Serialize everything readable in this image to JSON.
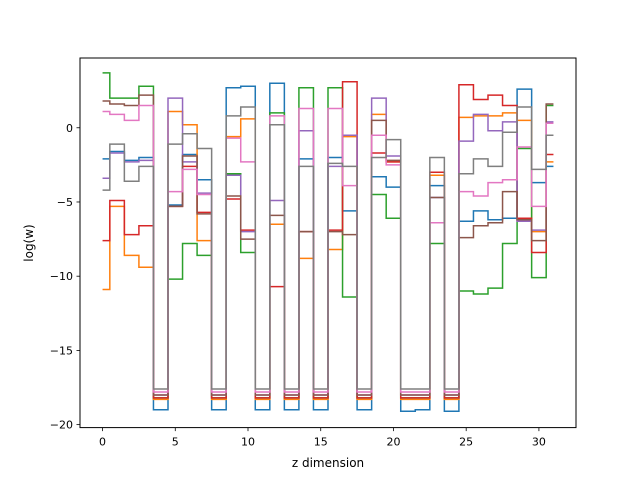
{
  "chart_data": {
    "type": "line",
    "step": "mid",
    "title": "",
    "xlabel": "z dimension",
    "ylabel": "log(w)",
    "xlim": [
      -1.55,
      32.55
    ],
    "ylim": [
      -20.2,
      4.7
    ],
    "x_ticks": [
      0,
      5,
      10,
      15,
      20,
      25,
      30
    ],
    "x_tick_labels": [
      "0",
      "5",
      "10",
      "15",
      "20",
      "25",
      "30"
    ],
    "y_ticks": [
      0,
      -5,
      -10,
      -15,
      -20
    ],
    "y_tick_labels": [
      "0",
      "−5",
      "−10",
      "−15",
      "−20"
    ],
    "grid": false,
    "legend": false,
    "x": [
      0,
      1,
      2,
      3,
      4,
      5,
      6,
      7,
      8,
      9,
      10,
      11,
      12,
      13,
      14,
      15,
      16,
      17,
      18,
      19,
      20,
      21,
      22,
      23,
      24,
      25,
      26,
      27,
      28,
      29,
      30,
      31
    ],
    "series": [
      {
        "color": "#1f77b4",
        "values": [
          -2.1,
          -1.6,
          -2.2,
          -2.0,
          -19.0,
          -5.2,
          -1.8,
          -3.5,
          -19.0,
          2.7,
          2.8,
          -19.0,
          3.0,
          -19.0,
          -2.1,
          -19.0,
          -2.0,
          -5.6,
          -19.0,
          -3.3,
          -4.0,
          -19.1,
          -19.0,
          -3.9,
          -19.1,
          -6.3,
          -5.6,
          -6.2,
          -6.1,
          2.6,
          -3.7,
          -2.6
        ]
      },
      {
        "color": "#ff7f0e",
        "values": [
          -10.9,
          -5.3,
          -8.6,
          -9.4,
          -18.3,
          1.1,
          0.2,
          -7.6,
          -18.3,
          -0.6,
          0.6,
          -18.3,
          -6.5,
          -18.3,
          -8.8,
          -18.3,
          -8.2,
          -0.6,
          -18.3,
          0.9,
          -2.3,
          -18.3,
          -18.3,
          -3.2,
          -18.3,
          0.7,
          0.8,
          0.8,
          1.0,
          0.5,
          -7.0,
          -2.3
        ]
      },
      {
        "color": "#2ca02c",
        "values": [
          3.7,
          2.0,
          2.0,
          2.8,
          -18.2,
          -10.2,
          -7.8,
          -8.6,
          -18.2,
          -3.1,
          -8.4,
          -18.2,
          1.0,
          -18.2,
          2.7,
          -18.2,
          2.7,
          -11.4,
          -18.2,
          -4.5,
          -6.1,
          -18.2,
          -18.2,
          -7.8,
          -18.2,
          -11.0,
          -11.2,
          -10.8,
          -7.8,
          -1.4,
          -10.1,
          1.5
        ]
      },
      {
        "color": "#d62728",
        "values": [
          -7.6,
          -4.9,
          -7.2,
          -6.6,
          -18.2,
          -5.3,
          -2.6,
          -5.7,
          -18.2,
          -4.8,
          -6.9,
          -18.2,
          -10.7,
          -18.2,
          -7.0,
          -18.2,
          -6.9,
          3.1,
          -18.2,
          -1.7,
          -2.3,
          -18.2,
          -18.2,
          -3.0,
          -18.2,
          2.9,
          1.9,
          2.2,
          1.5,
          -6.1,
          -8.4,
          -1.8
        ]
      },
      {
        "color": "#9467bd",
        "values": [
          -3.4,
          -1.7,
          -2.3,
          -2.2,
          -18.0,
          2.0,
          -2.3,
          -4.4,
          -18.0,
          -3.2,
          -7.0,
          -18.0,
          -4.9,
          -18.0,
          -0.2,
          -18.0,
          -2.6,
          -0.5,
          -18.0,
          2.0,
          -1.9,
          -18.0,
          -18.0,
          -4.7,
          -18.0,
          -0.9,
          0.9,
          -0.2,
          0.4,
          -6.3,
          -6.9,
          0.4
        ]
      },
      {
        "color": "#8c564b",
        "values": [
          1.8,
          1.6,
          1.5,
          2.2,
          -18.0,
          -5.3,
          -1.9,
          -5.8,
          -18.0,
          -4.6,
          -7.5,
          -18.0,
          -5.9,
          -18.0,
          -7.0,
          -18.0,
          -7.0,
          -7.2,
          -18.0,
          0.5,
          -2.2,
          -18.0,
          -18.0,
          -4.7,
          -18.0,
          -7.4,
          -6.6,
          -6.4,
          -4.3,
          -6.2,
          -7.6,
          1.6
        ]
      },
      {
        "color": "#e377c2",
        "values": [
          1.1,
          0.9,
          0.5,
          1.5,
          -17.8,
          -4.3,
          -2.8,
          -4.5,
          -17.8,
          -0.7,
          -2.3,
          -17.8,
          0.8,
          -17.8,
          1.3,
          -17.8,
          1.3,
          -3.9,
          -17.8,
          -0.5,
          -2.5,
          -17.8,
          -17.8,
          -6.4,
          -17.8,
          -4.3,
          -4.6,
          -3.7,
          -3.5,
          -1.3,
          -5.3,
          0.3
        ]
      },
      {
        "color": "#7f7f7f",
        "values": [
          -4.2,
          -1.1,
          -3.6,
          -2.6,
          -17.6,
          -1.1,
          -0.4,
          -1.4,
          -17.6,
          0.8,
          1.4,
          -17.6,
          0.2,
          -17.6,
          -2.6,
          -17.6,
          -2.4,
          -2.6,
          -17.6,
          -2.0,
          -0.8,
          -17.6,
          -17.6,
          -2.0,
          -17.6,
          -3.1,
          -2.1,
          -2.6,
          -0.3,
          1.4,
          -2.8,
          -0.5
        ]
      }
    ]
  }
}
